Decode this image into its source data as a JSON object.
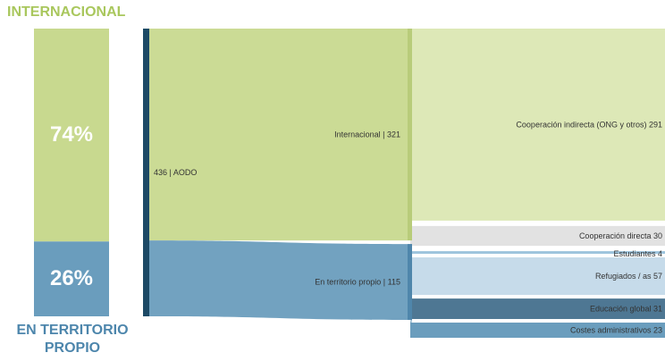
{
  "stacked": {
    "top_label": "INTERNACIONAL",
    "top_pct": "74%",
    "bottom_label": "EN TERRITORIO PROPIO",
    "bottom_pct": "26%",
    "colors": {
      "top": "#c8d98f",
      "bottom": "#6a9dbd",
      "top_text": "#a9c75d",
      "bottom_text": "#4d86ac"
    }
  },
  "chart_data": [
    {
      "type": "bar",
      "categories": [
        "INTERNACIONAL",
        "EN TERRITORIO PROPIO"
      ],
      "values": [
        74,
        26
      ],
      "value_labels": [
        "74%",
        "26%"
      ],
      "stacked": true
    },
    {
      "type": "sankey",
      "source": {
        "name": "436 | AODO",
        "value": 436
      },
      "groups": [
        {
          "name": "Internacional | 321",
          "value": 321,
          "color": "#c8d98f"
        },
        {
          "name": "En territorio propio | 115",
          "value": 115,
          "color": "#6a9dbd"
        }
      ],
      "targets": [
        {
          "name": "Cooperación indirecta (ONG y otros) 291",
          "value": 291,
          "group": 0,
          "color": "#dde8b7"
        },
        {
          "name": "Cooperación directa 30",
          "value": 30,
          "group": 0,
          "color": "#e2e2e2"
        },
        {
          "name": "Estudiantes 4",
          "value": 4,
          "group": 1,
          "color": "#9dc4dd"
        },
        {
          "name": "Refugiados / as 57",
          "value": 57,
          "group": 1,
          "color": "#c6dbea"
        },
        {
          "name": "Educación global 31",
          "value": 31,
          "group": 1,
          "color": "#4e7793"
        },
        {
          "name": "Costes administrativos 23",
          "value": 23,
          "group": 1,
          "color": "#6a9dbd"
        }
      ],
      "source_color": "#1d4a66"
    }
  ]
}
